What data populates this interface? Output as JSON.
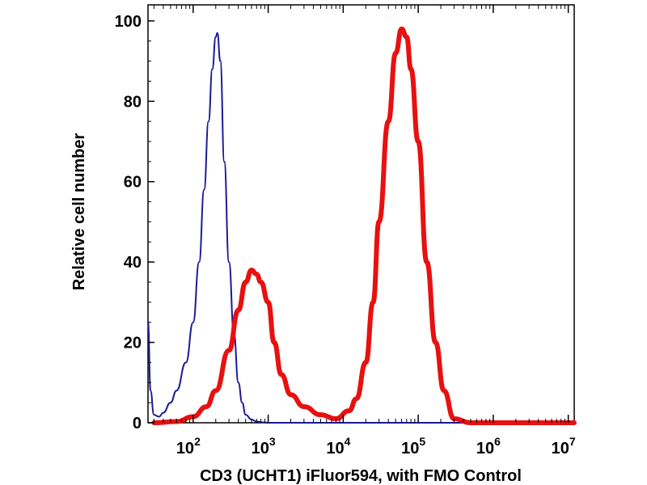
{
  "chart_data": {
    "type": "line",
    "title": "",
    "xlabel": "CD3 (UCHT1) iFluor594, with FMO Control",
    "ylabel": "Relative cell number",
    "x_scale": "log",
    "xlim": [
      25,
      12000000
    ],
    "ylim": [
      0,
      104
    ],
    "x_ticks": [
      {
        "base": "10",
        "exp": "2",
        "value": 100
      },
      {
        "base": "10",
        "exp": "3",
        "value": 1000
      },
      {
        "base": "10",
        "exp": "4",
        "value": 10000
      },
      {
        "base": "10",
        "exp": "5",
        "value": 100000
      },
      {
        "base": "10",
        "exp": "6",
        "value": 1000000
      },
      {
        "base": "10",
        "exp": "7",
        "value": 10000000
      }
    ],
    "y_ticks": [
      {
        "label": "0",
        "value": 0
      },
      {
        "label": "20",
        "value": 20
      },
      {
        "label": "40",
        "value": 40
      },
      {
        "label": "60",
        "value": 60
      },
      {
        "label": "80",
        "value": 80
      },
      {
        "label": "100",
        "value": 100
      }
    ],
    "grid": false,
    "series": [
      {
        "color": "#1a1a99",
        "stroke": "thin",
        "x": [
          25,
          27,
          30,
          35,
          40,
          50,
          60,
          80,
          100,
          120,
          140,
          160,
          180,
          200,
          210,
          230,
          260,
          300,
          350,
          400,
          450,
          500,
          600,
          700,
          850,
          1000,
          1500,
          10000,
          100000,
          1000000,
          12000000
        ],
        "y": [
          25,
          8,
          2,
          1.5,
          2.5,
          5,
          8,
          15,
          25,
          40,
          58,
          75,
          88,
          96,
          97,
          90,
          65,
          40,
          22,
          10,
          5,
          2,
          0.8,
          0.3,
          0.1,
          0,
          0,
          0,
          0,
          0,
          0
        ]
      },
      {
        "color": "#e81010",
        "stroke": "thick",
        "x": [
          30,
          60,
          100,
          150,
          200,
          300,
          400,
          500,
          600,
          700,
          800,
          1000,
          1200,
          1500,
          2000,
          3000,
          5000,
          8000,
          12000,
          15000,
          20000,
          25000,
          30000,
          40000,
          50000,
          60000,
          70000,
          80000,
          100000,
          130000,
          170000,
          220000,
          300000,
          500000,
          1000000,
          12000000
        ],
        "y": [
          0,
          0.3,
          1.5,
          4,
          8,
          18,
          28,
          35,
          38,
          37,
          35,
          30,
          20,
          12,
          7,
          4,
          2,
          1,
          3,
          6,
          15,
          30,
          50,
          75,
          92,
          98,
          96,
          88,
          70,
          40,
          20,
          8,
          1,
          0,
          0,
          0
        ]
      }
    ]
  }
}
